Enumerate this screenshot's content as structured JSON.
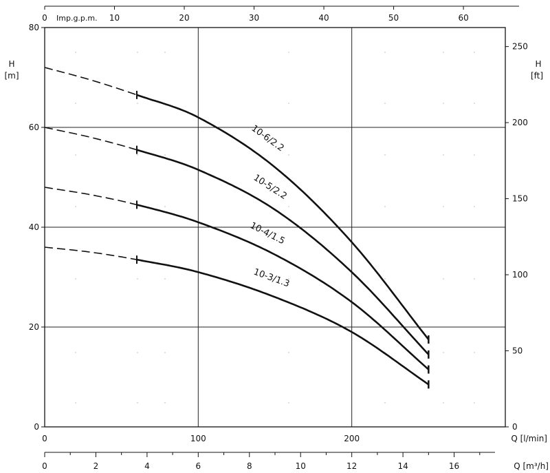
{
  "chart_data": {
    "type": "line",
    "title": "",
    "left_axis": {
      "label": "H",
      "unit": "[m]",
      "range": [
        0,
        80
      ],
      "ticks": [
        0,
        20,
        40,
        60,
        80
      ]
    },
    "right_axis": {
      "label": "H",
      "unit": "[ft]",
      "range": [
        0,
        262.5
      ],
      "ticks": [
        0,
        50,
        100,
        150,
        200,
        250
      ]
    },
    "top_axis": {
      "label": "Imp.g.p.m.",
      "range": [
        0,
        66
      ],
      "ticks": [
        0,
        10,
        20,
        30,
        40,
        50,
        60
      ]
    },
    "bottom_axis_lmin": {
      "label": "Q [l/min]",
      "range": [
        0,
        300
      ],
      "ticks": [
        0,
        100,
        200
      ]
    },
    "bottom_axis_m3h": {
      "label": "Q [m³/h]",
      "range": [
        0,
        18
      ],
      "ticks": [
        0,
        2,
        4,
        6,
        8,
        10,
        12,
        14,
        16
      ]
    },
    "grid": true,
    "series": [
      {
        "name": "10-6/2.2",
        "x": [
          0,
          30,
          60,
          100,
          150,
          200,
          250
        ],
        "y": [
          72,
          69.5,
          66.5,
          62,
          52,
          37,
          17.5
        ]
      },
      {
        "name": "10-5/2.2",
        "x": [
          0,
          30,
          60,
          100,
          150,
          200,
          250
        ],
        "y": [
          60,
          58,
          55.5,
          51.5,
          43.5,
          31,
          14.5
        ]
      },
      {
        "name": "10-4/1.5",
        "x": [
          0,
          30,
          60,
          100,
          150,
          200,
          250
        ],
        "y": [
          48,
          46.5,
          44.5,
          41,
          34.5,
          25,
          11.5
        ]
      },
      {
        "name": "10-3/1.3",
        "x": [
          0,
          30,
          60,
          100,
          150,
          200,
          250
        ],
        "y": [
          36,
          35,
          33.5,
          31,
          26,
          19,
          8.5
        ]
      }
    ],
    "dashed_until_x": 60,
    "curve_end_x": 250
  }
}
